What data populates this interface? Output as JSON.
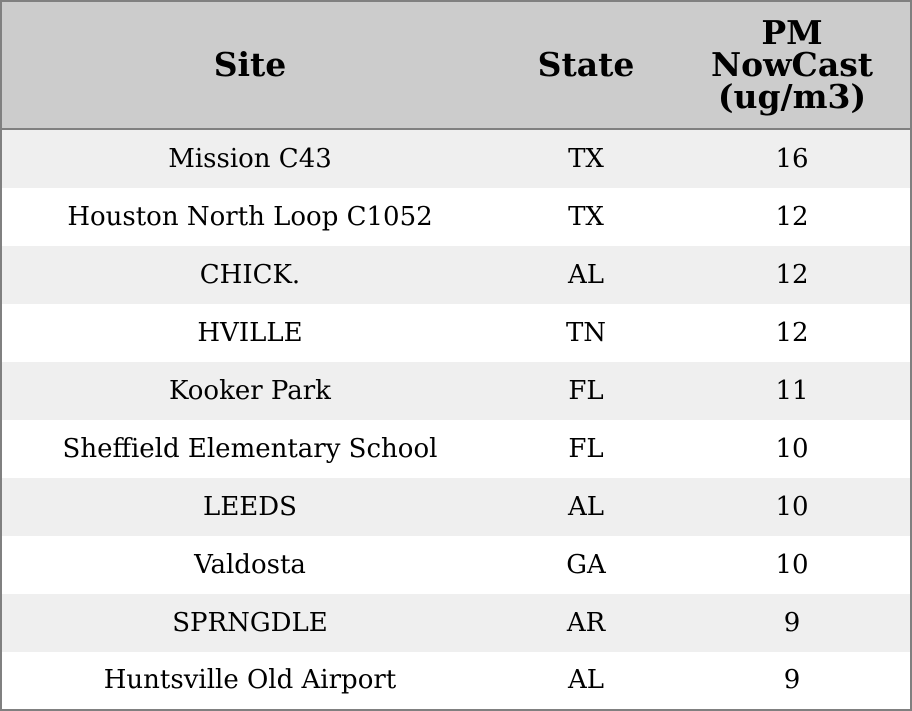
{
  "chart_data": {
    "type": "table",
    "columns": [
      "Site",
      "State",
      "PM NowCast (ug/m3)"
    ],
    "rows": [
      {
        "site": "Mission C43",
        "state": "TX",
        "pm": 16
      },
      {
        "site": "Houston North Loop C1052",
        "state": "TX",
        "pm": 12
      },
      {
        "site": "CHICK.",
        "state": "AL",
        "pm": 12
      },
      {
        "site": "HVILLE",
        "state": "TN",
        "pm": 12
      },
      {
        "site": "Kooker Park",
        "state": "FL",
        "pm": 11
      },
      {
        "site": "Sheffield Elementary School",
        "state": "FL",
        "pm": 10
      },
      {
        "site": "LEEDS",
        "state": "AL",
        "pm": 10
      },
      {
        "site": "Valdosta",
        "state": "GA",
        "pm": 10
      },
      {
        "site": "SPRNGDLE",
        "state": "AR",
        "pm": 9
      },
      {
        "site": "Huntsville Old Airport",
        "state": "AL",
        "pm": 9
      }
    ]
  },
  "colors": {
    "header_bg": "#cccccc",
    "row_alt_bg": "#efefef",
    "row_bg": "#ffffff",
    "border": "#808080"
  }
}
